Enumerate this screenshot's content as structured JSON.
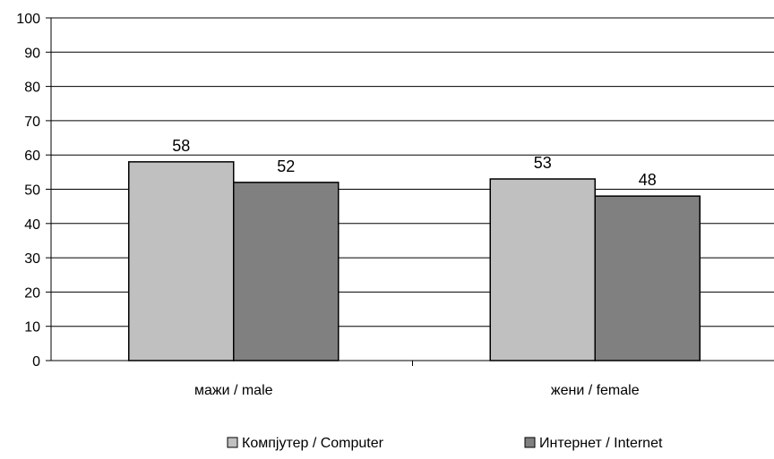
{
  "chart_data": {
    "type": "bar",
    "categories": [
      "мажи / male",
      "жени / female"
    ],
    "series": [
      {
        "name": "Компјутер / Computer",
        "values": [
          58,
          53
        ],
        "color": "#c0c0c0"
      },
      {
        "name": "Интернет / Internet",
        "values": [
          52,
          48
        ],
        "color": "#808080"
      }
    ],
    "data_labels": [
      [
        "58",
        "53"
      ],
      [
        "52",
        "48"
      ]
    ],
    "yticks": [
      "0",
      "10",
      "20",
      "30",
      "40",
      "50",
      "60",
      "70",
      "80",
      "90",
      "100"
    ],
    "ylim": [
      0,
      100
    ],
    "grid": true,
    "legend_position": "bottom"
  }
}
